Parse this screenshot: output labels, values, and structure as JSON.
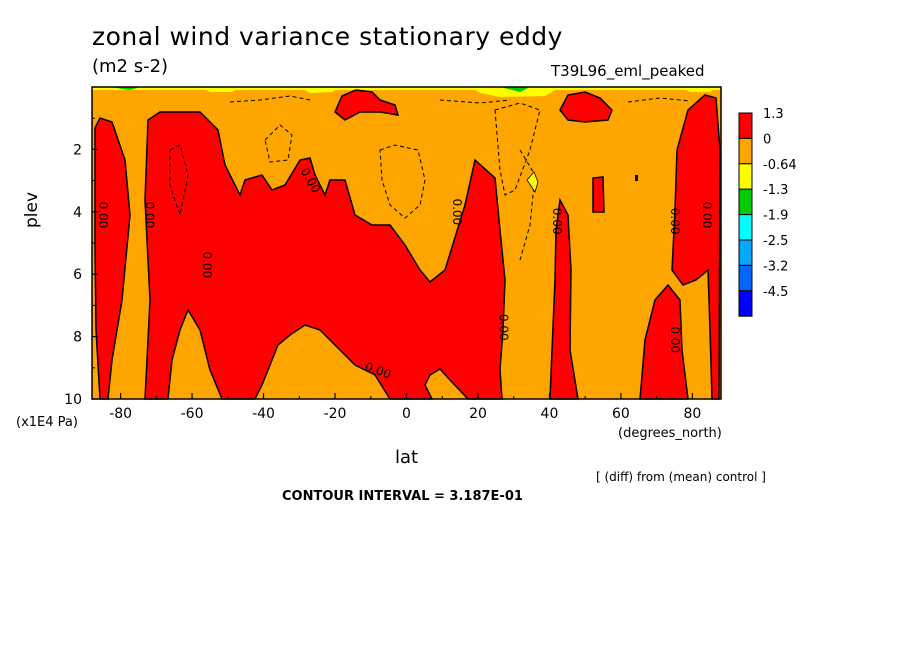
{
  "chart_data": {
    "type": "contour",
    "title": "zonal wind variance stationary eddy",
    "units": "(m2 s-2)",
    "run_label": "T39L96_eml_peaked",
    "xlabel": "lat",
    "xunit": "(degrees_north)",
    "ylabel": "plev",
    "yunit": "(x1E4 Pa)",
    "xlim": [
      -88,
      88
    ],
    "ylim": [
      10,
      0
    ],
    "x_ticks": [
      -80,
      -60,
      -40,
      -20,
      0,
      20,
      40,
      60,
      80
    ],
    "y_ticks": [
      2,
      4,
      6,
      8,
      10
    ],
    "contour_interval_label": "CONTOUR INTERVAL = 3.187E-01",
    "note": "[ (diff) from (mean) control ]",
    "contour_label": "0.00",
    "legend": {
      "levels": [
        "1.3",
        "0",
        "-0.64",
        "-1.3",
        "-1.9",
        "-2.5",
        "-3.2",
        "-4.5"
      ],
      "colors": [
        "#ff0000",
        "#ffa500",
        "#ffff00",
        "#00cc00",
        "#00ffff",
        "#00aaff",
        "#0066ff",
        "#0000ff"
      ]
    }
  }
}
